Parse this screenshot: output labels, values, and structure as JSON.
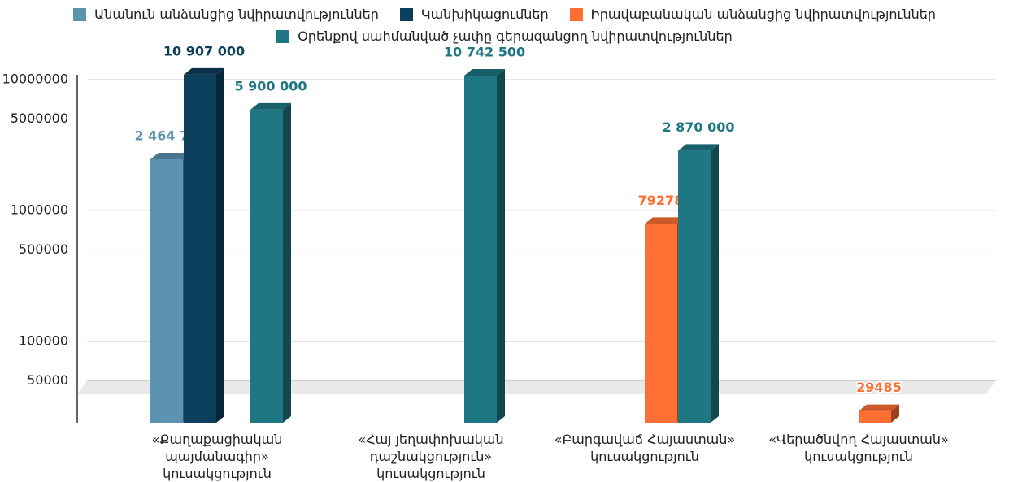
{
  "chart_data": {
    "type": "bar3d",
    "categories": [
      "«Քաղաքացիական պայմանագիր» կուսակցություն",
      "«Հայ յեղափոխական դաշնակցություն» կուսակցություն",
      "«Բարգավաճ Հայաստան» կուսակցություն",
      "«Վերածնվող Հայաստան» կուսակցություն"
    ],
    "series": [
      {
        "name": "Անանուն անձանցից նվիրատվություններ",
        "color": "#5b93b0",
        "values": [
          2464728,
          null,
          null,
          null
        ],
        "value_labels": [
          "2 464 728",
          null,
          null,
          null
        ]
      },
      {
        "name": "Կանխիկացումներ",
        "color": "#0b3f5c",
        "values": [
          10907000,
          null,
          null,
          null
        ],
        "value_labels": [
          "10 907 000",
          null,
          null,
          null
        ]
      },
      {
        "name": "Իրավաբանական անձանցից նվիրատվություններ",
        "color": "#ff6f33",
        "values": [
          null,
          null,
          792786,
          29485
        ]
      },
      {
        "name": "Օրենքով սահմանված չափը գերազանցող նվիրատվություններ",
        "color": "#1f7784",
        "values": [
          5900000,
          10742500,
          2870000,
          null
        ],
        "value_labels": [
          "5 900 000",
          "10 742 500",
          "2 870 000",
          null
        ]
      }
    ],
    "log_scale": true,
    "ylim": [
      24000,
      10000000
    ],
    "yticks": [
      50000,
      100000,
      500000,
      1000000,
      5000000,
      10000000
    ],
    "grid": true,
    "legend": "top"
  }
}
